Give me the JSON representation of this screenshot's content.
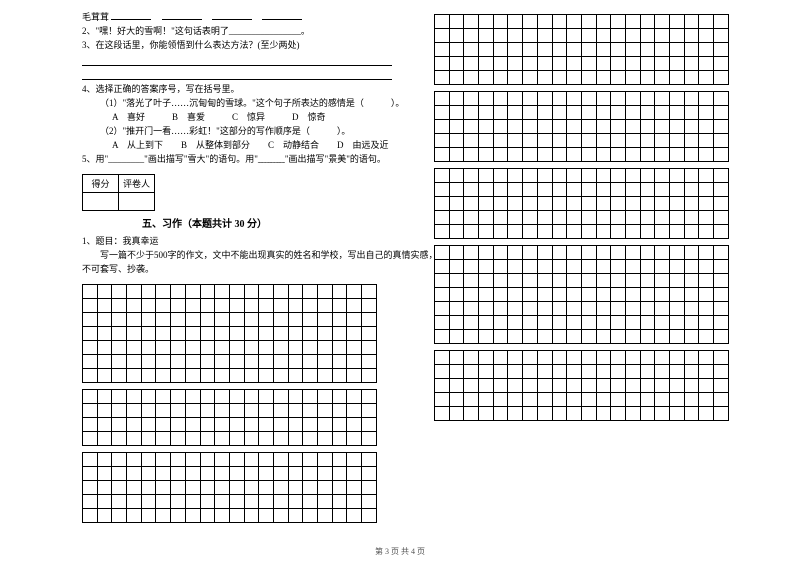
{
  "leftText": {
    "l1a": "毛茸茸",
    "l2": "2、\"嘿！好大的雪啊！\"这句话表明了________________。",
    "l3": "3、在这段话里，你能领悟到什么表达方法？(至少两处)",
    "l4": "4、选择正确的答案序号，写在括号里。",
    "l4a": "（1）\"落光了叶子……沉甸甸的雪球。\"这个句子所表达的感情是（　　　）。",
    "l4b": "A　喜好　　　B　喜爱　　　C　惊异　　　D　惊奇",
    "l4c": "（2）\"推开门一看……彩虹！\"这部分的写作顺序是（　　　）。",
    "l4d": "A　从上到下　　B　从整体到部分　　C　动静结合　　D　由远及近",
    "l5": "5、用\"________\"画出描写\"雪大\"的语句。用\"﹏﹏﹏\"画出描写\"景美\"的语句。"
  },
  "scoreTable": {
    "c1": "得分",
    "c2": "评卷人"
  },
  "section5": {
    "title": "五、习作（本题共计 30 分）",
    "q1": "1、题目：我真幸运",
    "q2": "写一篇不少于500字的作文，文中不能出现真实的姓名和学校，写出自己的真情实感，",
    "q3": "不可套写、抄袭。"
  },
  "grid": {
    "cols": 20,
    "rowsLarge": 7,
    "rowsSmall": 5,
    "rowsFour": 4
  },
  "footer": "第 3 页  共 4 页"
}
